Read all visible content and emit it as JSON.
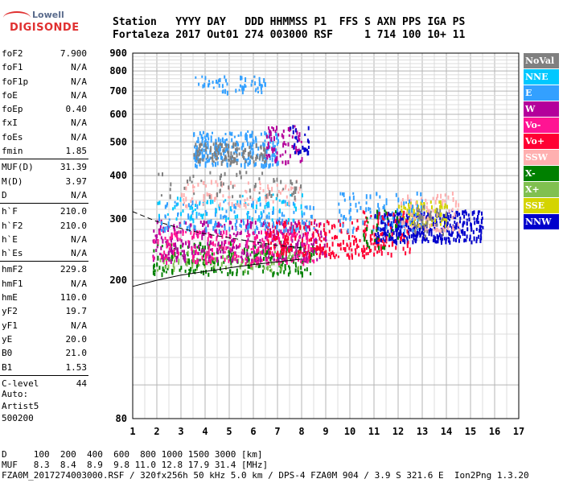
{
  "logo": {
    "line1": "Lowell",
    "line2": "DIGISONDE"
  },
  "header": {
    "line1": "Station   YYYY DAY   DDD HHMMSS P1  FFS S AXN PPS IGA PS",
    "line2": "Fortaleza 2017 Out01 274 003000 RSF     1 714 100 10+ 11"
  },
  "params": {
    "group1": [
      {
        "name": "foF2",
        "value": "7.900"
      },
      {
        "name": "foF1",
        "value": "N/A"
      },
      {
        "name": "foF1p",
        "value": "N/A"
      },
      {
        "name": "foE",
        "value": "N/A"
      },
      {
        "name": "foEp",
        "value": "0.40"
      },
      {
        "name": "fxI",
        "value": "N/A"
      },
      {
        "name": "foEs",
        "value": "N/A"
      },
      {
        "name": "fmin",
        "value": "1.85"
      }
    ],
    "group2": [
      {
        "name": "MUF(D)",
        "value": "31.39"
      },
      {
        "name": "M(D)",
        "value": "3.97"
      },
      {
        "name": "D",
        "value": "N/A"
      }
    ],
    "group3": [
      {
        "name": "h`F",
        "value": "210.0"
      },
      {
        "name": "h`F2",
        "value": "210.0"
      },
      {
        "name": "h`E",
        "value": "N/A"
      },
      {
        "name": "h`Es",
        "value": "N/A"
      }
    ],
    "group4": [
      {
        "name": "hmF2",
        "value": "229.8"
      },
      {
        "name": "hmF1",
        "value": "N/A"
      },
      {
        "name": "hmE",
        "value": "110.0"
      },
      {
        "name": "yF2",
        "value": "19.7"
      },
      {
        "name": "yF1",
        "value": "N/A"
      },
      {
        "name": "yE",
        "value": "20.0"
      },
      {
        "name": "B0",
        "value": "21.0"
      },
      {
        "name": "B1",
        "value": "1.53"
      }
    ],
    "group5": [
      {
        "name": "C-level",
        "value": "44"
      }
    ]
  },
  "auto": {
    "line1": "Auto:",
    "line2": "Artist5",
    "line3": "500200"
  },
  "legend": [
    {
      "label": "NoVal",
      "color": "#808080"
    },
    {
      "label": "NNE",
      "color": "#00c8ff"
    },
    {
      "label": "E",
      "color": "#33a0ff"
    },
    {
      "label": "W",
      "color": "#b4009b"
    },
    {
      "label": "Vo-",
      "color": "#ff1493"
    },
    {
      "label": "Vo+",
      "color": "#ff0033"
    },
    {
      "label": "SSW",
      "color": "#ffb0b0"
    },
    {
      "label": "X-",
      "color": "#008000"
    },
    {
      "label": "X+",
      "color": "#80c050"
    },
    {
      "label": "SSE",
      "color": "#d4d400"
    },
    {
      "label": "NNW",
      "color": "#0000cc"
    }
  ],
  "footer": {
    "line1": "D     100  200  400  600  800 1000 1500 3000 [km]",
    "line2": "MUF   8.3  8.4  8.9  9.8 11.0 12.8 17.9 31.4 [MHz]",
    "line3": "FZA0M_2017274003000.RSF / 320fx256h 50 kHz 5.0 km / DPS-4 FZA0M 904 / 3.9 S 321.6 E  Ion2Png 1.3.20"
  },
  "chart_data": {
    "type": "scatter",
    "xlim": [
      1,
      17
    ],
    "ylim": [
      80,
      900
    ],
    "xticks": [
      "1",
      "2",
      "3",
      "4",
      "5",
      "6",
      "7",
      "8",
      "9",
      "10",
      "11",
      "12",
      "13",
      "14",
      "15",
      "16",
      "17"
    ],
    "yticks": [
      {
        "value": 80,
        "label": "80"
      },
      {
        "value": 200,
        "label": "200"
      },
      {
        "value": 300,
        "label": "300"
      },
      {
        "value": 400,
        "label": "400"
      },
      {
        "value": 500,
        "label": "500"
      },
      {
        "value": 600,
        "label": "600"
      },
      {
        "value": 700,
        "label": "700"
      },
      {
        "value": 800,
        "label": "800"
      },
      {
        "value": 900,
        "label": "900"
      }
    ],
    "grid": true,
    "yscale": "log",
    "clusters": [
      {
        "series": "X-",
        "x": [
          1.8,
          8.5
        ],
        "y": [
          210,
          260
        ],
        "density": 260
      },
      {
        "series": "X+",
        "x": [
          2.0,
          8.0
        ],
        "y": [
          215,
          245
        ],
        "density": 80
      },
      {
        "series": "W",
        "x": [
          1.8,
          9.0
        ],
        "y": [
          230,
          300
        ],
        "density": 380
      },
      {
        "series": "Vo-",
        "x": [
          1.8,
          8.5
        ],
        "y": [
          225,
          280
        ],
        "density": 220
      },
      {
        "series": "Vo+",
        "x": [
          6.5,
          11.2
        ],
        "y": [
          235,
          300
        ],
        "density": 220
      },
      {
        "series": "E",
        "x": [
          2.0,
          8.5
        ],
        "y": [
          280,
          340
        ],
        "density": 160
      },
      {
        "series": "NNE",
        "x": [
          2.0,
          8.0
        ],
        "y": [
          300,
          360
        ],
        "density": 80
      },
      {
        "series": "SSW",
        "x": [
          3.0,
          8.0
        ],
        "y": [
          330,
          390
        ],
        "density": 90
      },
      {
        "series": "NoVal",
        "x": [
          2.0,
          8.0
        ],
        "y": [
          350,
          420
        ],
        "density": 60
      },
      {
        "series": "E",
        "x": [
          3.5,
          7.0
        ],
        "y": [
          430,
          540
        ],
        "density": 260
      },
      {
        "series": "NoVal",
        "x": [
          3.5,
          6.5
        ],
        "y": [
          440,
          500
        ],
        "density": 120
      },
      {
        "series": "W",
        "x": [
          6.5,
          8.0
        ],
        "y": [
          440,
          560
        ],
        "density": 70
      },
      {
        "series": "NNW",
        "x": [
          7.5,
          8.3
        ],
        "y": [
          470,
          560
        ],
        "density": 25
      },
      {
        "series": "E",
        "x": [
          3.5,
          6.5
        ],
        "y": [
          700,
          780
        ],
        "density": 60
      },
      {
        "series": "NNW",
        "x": [
          11.0,
          15.5
        ],
        "y": [
          260,
          320
        ],
        "density": 420
      },
      {
        "series": "SSE",
        "x": [
          12.0,
          14.0
        ],
        "y": [
          290,
          340
        ],
        "density": 90
      },
      {
        "series": "SSW",
        "x": [
          12.0,
          14.5
        ],
        "y": [
          280,
          360
        ],
        "density": 80
      },
      {
        "series": "E",
        "x": [
          9.5,
          13.0
        ],
        "y": [
          280,
          360
        ],
        "density": 90
      },
      {
        "series": "Vo+",
        "x": [
          10.5,
          12.5
        ],
        "y": [
          240,
          320
        ],
        "density": 70
      },
      {
        "series": "X-",
        "x": [
          10.5,
          12.0
        ],
        "y": [
          250,
          320
        ],
        "density": 30
      },
      {
        "series": "NoVal",
        "x": [
          12.5,
          14.0
        ],
        "y": [
          270,
          330
        ],
        "density": 40
      }
    ],
    "curves": [
      {
        "style": "dashed",
        "x": [
          1,
          1.5,
          2,
          3,
          4,
          5,
          6,
          7,
          8
        ],
        "y": [
          315,
          305,
          295,
          282,
          272,
          265,
          258,
          252,
          248
        ]
      },
      {
        "style": "solid",
        "x": [
          1,
          2,
          3,
          4,
          5,
          6,
          7,
          8
        ],
        "y": [
          192,
          200,
          207,
          212,
          217,
          222,
          226,
          230
        ]
      }
    ]
  }
}
